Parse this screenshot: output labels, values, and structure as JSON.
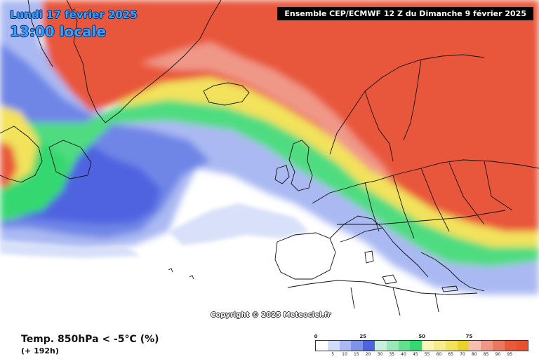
{
  "header": {
    "date": "Lundi 17 février 2025",
    "time": "13:00 locale",
    "run": "Ensemble CEP/ECMWF 12 Z du Dimanche 9 février 2025"
  },
  "copyright": "Copyright © 2025 Meteociel.fr",
  "parameter": {
    "title": "Temp. 850hPa < -5°C (%)",
    "lead": "(+ 192h)"
  },
  "legend": {
    "major_labels": [
      "0",
      "25",
      "50",
      "75"
    ],
    "minor_labels": [
      "5",
      "10",
      "15",
      "20",
      "30",
      "35",
      "40",
      "45",
      "55",
      "60",
      "65",
      "70",
      "80",
      "85",
      "90",
      "95"
    ],
    "colors": [
      "#ffffff",
      "#d2dcf8",
      "#aab9f2",
      "#7f93ea",
      "#4f63e0",
      "#c8f0dc",
      "#9ae8b8",
      "#62e090",
      "#34d870",
      "#fbf5b8",
      "#f7ec8c",
      "#f2e25c",
      "#ead22c",
      "#f5c0b0",
      "#f09888",
      "#ec7860",
      "#e85a3a",
      "#e8502f"
    ]
  }
}
